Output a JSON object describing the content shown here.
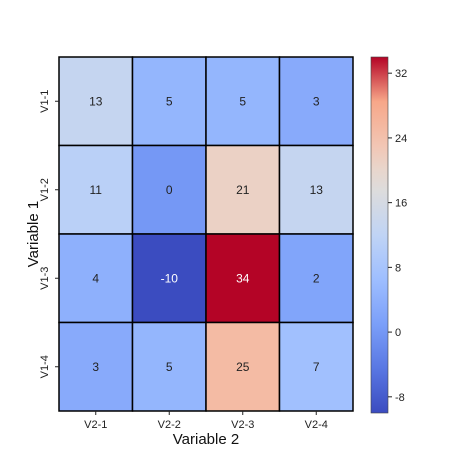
{
  "chart_data": {
    "type": "heatmap",
    "title": "",
    "xlabel": "Variable 2",
    "ylabel": "Variable 1",
    "x_categories": [
      "V2-1",
      "V2-2",
      "V2-3",
      "V2-4"
    ],
    "y_categories": [
      "V1-1",
      "V1-2",
      "V1-3",
      "V1-4"
    ],
    "values": [
      [
        13,
        5,
        5,
        3
      ],
      [
        11,
        0,
        21,
        13
      ],
      [
        4,
        -10,
        34,
        2
      ],
      [
        3,
        5,
        25,
        7
      ]
    ],
    "colormap": "coolwarm",
    "color_range": [
      -10,
      34
    ],
    "colorbar_ticks": [
      -8,
      0,
      8,
      16,
      24,
      32
    ],
    "annotated": true,
    "cell_borders": "black",
    "grid": false
  }
}
